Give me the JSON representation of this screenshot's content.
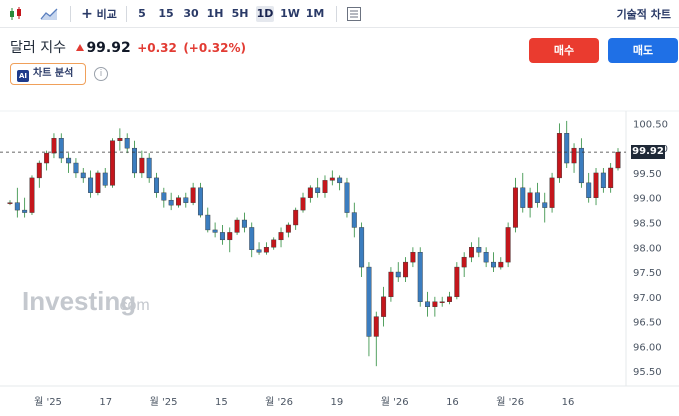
{
  "toolbar": {
    "compare_label": "비교",
    "intervals": [
      "5",
      "15",
      "30",
      "1H",
      "5H",
      "1D",
      "1W",
      "1M"
    ],
    "active_interval": "1D",
    "technical_chart_label": "기술적 차트"
  },
  "header": {
    "name": "달러 지수",
    "price": "99.92",
    "change": "+0.32",
    "change_pct": "(+0.32%)",
    "ai_label": "차트 분석",
    "ai_badge": "AI",
    "info": "i"
  },
  "actions": {
    "buy": "매수",
    "sell": "매도"
  },
  "watermark": {
    "brand": "Investing",
    "suffix": ".com"
  },
  "colors": {
    "up": "#c4161c",
    "down": "#3b7dbf",
    "accent_up": "#ea3b2f",
    "accent_down": "#1f70e6"
  },
  "chart_data": {
    "type": "candlestick",
    "y_ticks": [
      "95.50",
      "96.00",
      "96.50",
      "97.00",
      "97.50",
      "98.00",
      "98.50",
      "99.00",
      "99.50",
      "100.00",
      "100.50"
    ],
    "ylim": [
      95.2,
      100.75
    ],
    "x_ticks": [
      "월 '25",
      "17",
      "월 '25",
      "15",
      "월 '26",
      "19",
      "월 '26",
      "16",
      "월 '26",
      "16"
    ],
    "last_price": 99.92,
    "candles": [
      [
        98.9,
        98.95,
        98.85,
        98.9
      ],
      [
        98.9,
        99.2,
        98.6,
        98.75
      ],
      [
        98.75,
        99.0,
        98.6,
        98.7
      ],
      [
        98.7,
        99.45,
        98.65,
        99.4
      ],
      [
        99.4,
        99.75,
        99.2,
        99.7
      ],
      [
        99.7,
        99.95,
        99.55,
        99.9
      ],
      [
        99.9,
        100.3,
        99.8,
        100.2
      ],
      [
        100.2,
        100.3,
        99.7,
        99.8
      ],
      [
        99.8,
        99.9,
        99.5,
        99.7
      ],
      [
        99.7,
        99.8,
        99.4,
        99.5
      ],
      [
        99.5,
        99.6,
        99.3,
        99.4
      ],
      [
        99.4,
        99.55,
        99.0,
        99.1
      ],
      [
        99.1,
        99.55,
        99.05,
        99.5
      ],
      [
        99.5,
        99.6,
        99.2,
        99.25
      ],
      [
        99.25,
        100.2,
        99.2,
        100.15
      ],
      [
        100.15,
        100.4,
        99.95,
        100.2
      ],
      [
        100.2,
        100.3,
        99.9,
        100.0
      ],
      [
        100.0,
        100.15,
        99.4,
        99.5
      ],
      [
        99.5,
        99.95,
        99.4,
        99.8
      ],
      [
        99.8,
        99.9,
        99.3,
        99.4
      ],
      [
        99.4,
        99.5,
        99.0,
        99.1
      ],
      [
        99.1,
        99.2,
        98.8,
        98.95
      ],
      [
        98.95,
        99.1,
        98.75,
        98.85
      ],
      [
        98.85,
        99.05,
        98.8,
        99.0
      ],
      [
        99.0,
        99.1,
        98.8,
        98.9
      ],
      [
        98.9,
        99.3,
        98.85,
        99.2
      ],
      [
        99.2,
        99.3,
        98.6,
        98.65
      ],
      [
        98.65,
        98.8,
        98.3,
        98.35
      ],
      [
        98.35,
        98.5,
        98.2,
        98.3
      ],
      [
        98.3,
        98.45,
        98.05,
        98.15
      ],
      [
        98.15,
        98.4,
        97.9,
        98.3
      ],
      [
        98.3,
        98.6,
        98.25,
        98.55
      ],
      [
        98.55,
        98.7,
        98.3,
        98.4
      ],
      [
        98.4,
        98.5,
        97.8,
        97.95
      ],
      [
        97.95,
        98.1,
        97.85,
        97.9
      ],
      [
        97.9,
        98.1,
        97.85,
        98.0
      ],
      [
        98.0,
        98.2,
        97.95,
        98.15
      ],
      [
        98.15,
        98.4,
        98.0,
        98.3
      ],
      [
        98.3,
        98.5,
        98.2,
        98.45
      ],
      [
        98.45,
        98.8,
        98.35,
        98.75
      ],
      [
        98.75,
        99.1,
        98.7,
        99.0
      ],
      [
        99.0,
        99.25,
        98.9,
        99.2
      ],
      [
        99.2,
        99.4,
        99.0,
        99.1
      ],
      [
        99.1,
        99.45,
        99.0,
        99.35
      ],
      [
        99.35,
        99.55,
        99.25,
        99.4
      ],
      [
        99.4,
        99.45,
        99.15,
        99.3
      ],
      [
        99.3,
        99.4,
        98.6,
        98.7
      ],
      [
        98.7,
        98.9,
        98.2,
        98.4
      ],
      [
        98.4,
        98.5,
        97.4,
        97.6
      ],
      [
        97.6,
        97.7,
        95.8,
        96.2
      ],
      [
        96.2,
        96.7,
        95.6,
        96.6
      ],
      [
        96.6,
        97.2,
        96.4,
        97.0
      ],
      [
        97.0,
        97.6,
        96.9,
        97.5
      ],
      [
        97.5,
        97.7,
        97.3,
        97.4
      ],
      [
        97.4,
        97.8,
        97.3,
        97.7
      ],
      [
        97.7,
        98.0,
        97.6,
        97.9
      ],
      [
        97.9,
        98.0,
        96.8,
        96.9
      ],
      [
        96.9,
        97.1,
        96.6,
        96.8
      ],
      [
        96.8,
        97.0,
        96.6,
        96.9
      ],
      [
        96.9,
        97.0,
        96.8,
        96.9
      ],
      [
        96.9,
        97.1,
        96.85,
        97.0
      ],
      [
        97.0,
        97.7,
        96.95,
        97.6
      ],
      [
        97.6,
        97.9,
        97.4,
        97.8
      ],
      [
        97.8,
        98.1,
        97.7,
        98.0
      ],
      [
        98.0,
        98.2,
        97.8,
        97.9
      ],
      [
        97.9,
        98.0,
        97.6,
        97.7
      ],
      [
        97.7,
        97.9,
        97.5,
        97.6
      ],
      [
        97.6,
        97.8,
        97.55,
        97.7
      ],
      [
        97.7,
        98.5,
        97.6,
        98.4
      ],
      [
        98.4,
        99.4,
        98.3,
        99.2
      ],
      [
        99.2,
        99.5,
        98.7,
        98.8
      ],
      [
        98.8,
        99.2,
        98.6,
        99.1
      ],
      [
        99.1,
        99.3,
        98.8,
        98.9
      ],
      [
        98.9,
        99.1,
        98.5,
        98.8
      ],
      [
        98.8,
        99.5,
        98.7,
        99.4
      ],
      [
        99.4,
        100.5,
        99.3,
        100.3
      ],
      [
        100.3,
        100.55,
        99.6,
        99.7
      ],
      [
        99.7,
        100.1,
        99.5,
        100.0
      ],
      [
        100.0,
        100.2,
        99.2,
        99.3
      ],
      [
        99.3,
        99.5,
        98.9,
        99.0
      ],
      [
        99.0,
        99.6,
        98.85,
        99.5
      ],
      [
        99.5,
        99.6,
        99.1,
        99.2
      ],
      [
        99.2,
        99.7,
        99.1,
        99.6
      ],
      [
        99.6,
        100.0,
        99.55,
        99.92
      ]
    ]
  }
}
